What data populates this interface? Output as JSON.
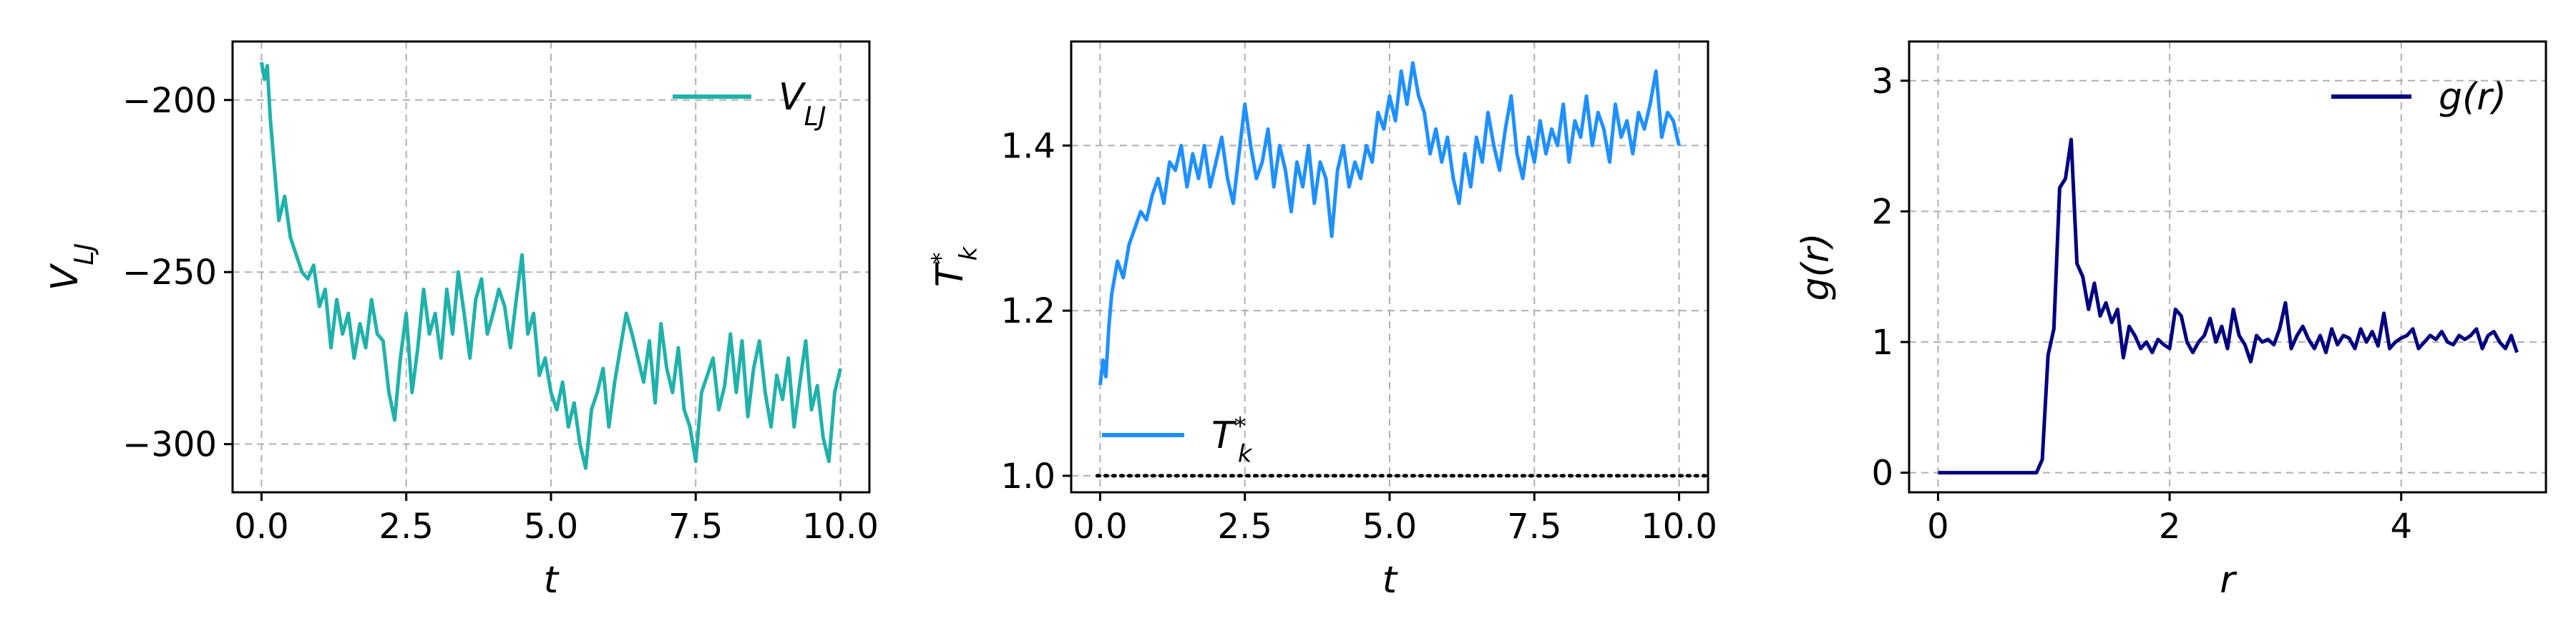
{
  "chart_data": [
    {
      "type": "line",
      "xlabel": "t",
      "ylabel": "V_LJ",
      "xlim": [
        -0.5,
        10.5
      ],
      "ylim": [
        -314,
        -183
      ],
      "xticks": [
        0,
        2.5,
        5,
        7.5,
        10
      ],
      "xtick_labels": [
        "0.0",
        "2.5",
        "5.0",
        "7.5",
        "10.0"
      ],
      "yticks": [
        -200,
        -250,
        -300
      ],
      "ytick_labels": [
        "−200",
        "−250",
        "−300"
      ],
      "grid": true,
      "legend_position": "upper right",
      "series": [
        {
          "name": "V_LJ",
          "color": "#20b2aa",
          "style": "solid",
          "x": [
            0.0,
            0.05,
            0.1,
            0.15,
            0.2,
            0.3,
            0.4,
            0.5,
            0.6,
            0.7,
            0.8,
            0.9,
            1.0,
            1.1,
            1.2,
            1.3,
            1.4,
            1.5,
            1.6,
            1.7,
            1.8,
            1.9,
            2.0,
            2.1,
            2.2,
            2.3,
            2.4,
            2.5,
            2.6,
            2.7,
            2.8,
            2.9,
            3.0,
            3.1,
            3.2,
            3.3,
            3.4,
            3.5,
            3.6,
            3.7,
            3.8,
            3.9,
            4.0,
            4.1,
            4.2,
            4.3,
            4.4,
            4.5,
            4.6,
            4.7,
            4.8,
            4.9,
            5.0,
            5.1,
            5.2,
            5.3,
            5.4,
            5.5,
            5.6,
            5.7,
            5.8,
            5.9,
            6.0,
            6.1,
            6.2,
            6.3,
            6.4,
            6.5,
            6.6,
            6.7,
            6.8,
            6.9,
            7.0,
            7.1,
            7.2,
            7.3,
            7.4,
            7.5,
            7.6,
            7.7,
            7.8,
            7.9,
            8.0,
            8.1,
            8.2,
            8.3,
            8.4,
            8.5,
            8.6,
            8.7,
            8.8,
            8.9,
            9.0,
            9.1,
            9.2,
            9.3,
            9.4,
            9.5,
            9.6,
            9.7,
            9.8,
            9.9,
            10.0
          ],
          "y": [
            -189,
            -194,
            -190,
            -205,
            -215,
            -235,
            -228,
            -240,
            -245,
            -250,
            -252,
            -248,
            -260,
            -255,
            -272,
            -258,
            -268,
            -262,
            -275,
            -265,
            -272,
            -258,
            -268,
            -270,
            -285,
            -293,
            -275,
            -262,
            -285,
            -272,
            -255,
            -268,
            -262,
            -275,
            -255,
            -268,
            -250,
            -262,
            -275,
            -258,
            -252,
            -268,
            -262,
            -255,
            -260,
            -272,
            -258,
            -245,
            -268,
            -262,
            -280,
            -275,
            -285,
            -290,
            -282,
            -295,
            -288,
            -300,
            -307,
            -290,
            -285,
            -278,
            -295,
            -282,
            -272,
            -262,
            -268,
            -275,
            -282,
            -270,
            -288,
            -265,
            -278,
            -285,
            -272,
            -290,
            -295,
            -305,
            -285,
            -280,
            -275,
            -290,
            -283,
            -268,
            -285,
            -270,
            -292,
            -278,
            -270,
            -285,
            -295,
            -280,
            -287,
            -275,
            -295,
            -282,
            -270,
            -290,
            -283,
            -298,
            -305,
            -285,
            -278
          ]
        }
      ]
    },
    {
      "type": "line",
      "xlabel": "t",
      "ylabel": "T_k*",
      "xlim": [
        -0.5,
        10.5
      ],
      "ylim": [
        0.98,
        1.526
      ],
      "xticks": [
        0,
        2.5,
        5,
        7.5,
        10
      ],
      "xtick_labels": [
        "0.0",
        "2.5",
        "5.0",
        "7.5",
        "10.0"
      ],
      "yticks": [
        1.0,
        1.2,
        1.4
      ],
      "ytick_labels": [
        "1.0",
        "1.2",
        "1.4"
      ],
      "grid": true,
      "legend_position": "lower left",
      "series": [
        {
          "name": "T_k*",
          "color": "#1e90ff",
          "style": "solid",
          "x": [
            0.0,
            0.05,
            0.1,
            0.15,
            0.2,
            0.3,
            0.4,
            0.5,
            0.6,
            0.7,
            0.8,
            0.9,
            1.0,
            1.1,
            1.2,
            1.3,
            1.4,
            1.5,
            1.6,
            1.7,
            1.8,
            1.9,
            2.0,
            2.1,
            2.2,
            2.3,
            2.4,
            2.5,
            2.6,
            2.7,
            2.8,
            2.9,
            3.0,
            3.1,
            3.2,
            3.3,
            3.4,
            3.5,
            3.6,
            3.7,
            3.8,
            3.9,
            4.0,
            4.1,
            4.2,
            4.3,
            4.4,
            4.5,
            4.6,
            4.7,
            4.8,
            4.9,
            5.0,
            5.1,
            5.2,
            5.3,
            5.4,
            5.5,
            5.6,
            5.7,
            5.8,
            5.9,
            6.0,
            6.1,
            6.2,
            6.3,
            6.4,
            6.5,
            6.6,
            6.7,
            6.8,
            6.9,
            7.0,
            7.1,
            7.2,
            7.3,
            7.4,
            7.5,
            7.6,
            7.7,
            7.8,
            7.9,
            8.0,
            8.1,
            8.2,
            8.3,
            8.4,
            8.5,
            8.6,
            8.7,
            8.8,
            8.9,
            9.0,
            9.1,
            9.2,
            9.3,
            9.4,
            9.5,
            9.6,
            9.7,
            9.8,
            9.9,
            10.0
          ],
          "y": [
            1.11,
            1.14,
            1.12,
            1.18,
            1.22,
            1.26,
            1.24,
            1.28,
            1.3,
            1.32,
            1.31,
            1.34,
            1.36,
            1.33,
            1.38,
            1.37,
            1.4,
            1.35,
            1.39,
            1.36,
            1.4,
            1.35,
            1.38,
            1.41,
            1.36,
            1.33,
            1.39,
            1.45,
            1.4,
            1.36,
            1.38,
            1.42,
            1.35,
            1.4,
            1.37,
            1.32,
            1.38,
            1.35,
            1.4,
            1.33,
            1.38,
            1.36,
            1.29,
            1.37,
            1.4,
            1.35,
            1.38,
            1.36,
            1.4,
            1.38,
            1.44,
            1.42,
            1.46,
            1.43,
            1.49,
            1.45,
            1.5,
            1.46,
            1.44,
            1.39,
            1.42,
            1.38,
            1.41,
            1.36,
            1.33,
            1.39,
            1.35,
            1.41,
            1.38,
            1.44,
            1.4,
            1.37,
            1.42,
            1.46,
            1.39,
            1.36,
            1.41,
            1.38,
            1.43,
            1.39,
            1.42,
            1.4,
            1.45,
            1.38,
            1.43,
            1.41,
            1.46,
            1.4,
            1.44,
            1.42,
            1.38,
            1.45,
            1.41,
            1.43,
            1.39,
            1.44,
            1.42,
            1.45,
            1.49,
            1.41,
            1.44,
            1.43,
            1.4
          ]
        },
        {
          "name": "",
          "color": "#000000",
          "style": "dotted",
          "x": [
            -0.05,
            10.45
          ],
          "y": [
            1.0,
            1.0
          ]
        }
      ]
    },
    {
      "type": "line",
      "xlabel": "r",
      "ylabel": "g(r)",
      "xlim": [
        -0.25,
        5.25
      ],
      "ylim": [
        -0.15,
        3.3
      ],
      "xticks": [
        0,
        2,
        4
      ],
      "xtick_labels": [
        "0",
        "2",
        "4"
      ],
      "yticks": [
        0,
        1,
        2,
        3
      ],
      "ytick_labels": [
        "0",
        "1",
        "2",
        "3"
      ],
      "grid": true,
      "legend_position": "upper right",
      "series": [
        {
          "name": "g(r)",
          "color": "#000080",
          "style": "solid",
          "x": [
            0.0,
            0.1,
            0.2,
            0.3,
            0.4,
            0.5,
            0.6,
            0.7,
            0.8,
            0.85,
            0.9,
            0.95,
            1.0,
            1.05,
            1.1,
            1.15,
            1.2,
            1.25,
            1.3,
            1.35,
            1.4,
            1.45,
            1.5,
            1.55,
            1.6,
            1.65,
            1.7,
            1.75,
            1.8,
            1.85,
            1.9,
            1.95,
            2.0,
            2.05,
            2.1,
            2.15,
            2.2,
            2.25,
            2.3,
            2.35,
            2.4,
            2.45,
            2.5,
            2.55,
            2.6,
            2.65,
            2.7,
            2.75,
            2.8,
            2.85,
            2.9,
            2.95,
            3.0,
            3.05,
            3.1,
            3.15,
            3.2,
            3.25,
            3.3,
            3.35,
            3.4,
            3.45,
            3.5,
            3.55,
            3.6,
            3.65,
            3.7,
            3.75,
            3.8,
            3.85,
            3.9,
            3.95,
            4.0,
            4.05,
            4.1,
            4.15,
            4.2,
            4.25,
            4.3,
            4.35,
            4.4,
            4.45,
            4.5,
            4.55,
            4.6,
            4.65,
            4.7,
            4.75,
            4.8,
            4.85,
            4.9,
            4.95,
            5.0
          ],
          "y": [
            0,
            0,
            0,
            0,
            0,
            0,
            0,
            0,
            0,
            0,
            0.1,
            0.9,
            1.1,
            2.18,
            2.25,
            2.55,
            1.6,
            1.5,
            1.25,
            1.45,
            1.2,
            1.3,
            1.15,
            1.25,
            0.88,
            1.12,
            1.05,
            0.95,
            1.0,
            0.92,
            1.02,
            0.98,
            0.95,
            1.25,
            1.2,
            1.0,
            0.92,
            1.0,
            1.05,
            1.18,
            1.0,
            1.12,
            0.95,
            1.25,
            1.05,
            0.98,
            0.85,
            1.05,
            1.0,
            1.02,
            0.98,
            1.1,
            1.3,
            0.95,
            1.05,
            1.12,
            1.02,
            0.95,
            1.05,
            0.92,
            1.1,
            0.98,
            1.05,
            1.03,
            0.95,
            1.1,
            1.0,
            1.08,
            0.97,
            1.22,
            0.95,
            1.0,
            1.03,
            1.05,
            1.1,
            0.95,
            1.0,
            1.05,
            1.02,
            1.08,
            1.0,
            0.98,
            1.05,
            1.02,
            1.05,
            1.1,
            0.95,
            1.05,
            1.08,
            1.0,
            0.95,
            1.05,
            0.92
          ]
        }
      ]
    }
  ]
}
